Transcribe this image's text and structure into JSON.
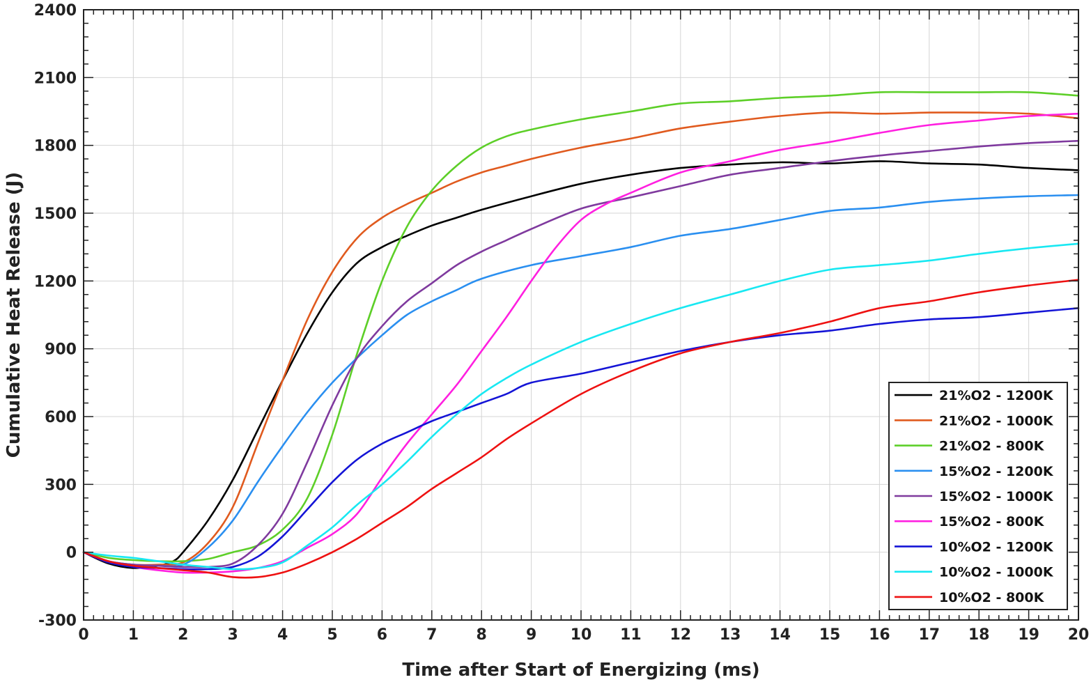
{
  "chart_data": {
    "type": "line",
    "title": "",
    "xlabel": "Time after Start of Energizing (ms)",
    "ylabel": "Cumulative Heat Release (J)",
    "xlim": [
      0,
      20
    ],
    "ylim": [
      -300,
      2400
    ],
    "xticks": [
      0,
      1,
      2,
      3,
      4,
      5,
      6,
      7,
      8,
      9,
      10,
      11,
      12,
      13,
      14,
      15,
      16,
      17,
      18,
      19,
      20
    ],
    "yticks": [
      -300,
      0,
      300,
      600,
      900,
      1200,
      1500,
      1800,
      2100,
      2400
    ],
    "grid": true,
    "legend_position": "bottom-right",
    "series": [
      {
        "name": "21%O2 - 1200K",
        "color": "#000000",
        "x": [
          0,
          0.5,
          1,
          1.5,
          1.8,
          2,
          2.5,
          3,
          3.5,
          4,
          4.5,
          5,
          5.5,
          6,
          6.5,
          7,
          7.5,
          8,
          9,
          10,
          11,
          12,
          13,
          14,
          15,
          16,
          17,
          18,
          19,
          20
        ],
        "y": [
          0,
          -50,
          -70,
          -60,
          -40,
          0,
          140,
          320,
          540,
          760,
          970,
          1150,
          1280,
          1350,
          1400,
          1445,
          1480,
          1515,
          1575,
          1630,
          1670,
          1700,
          1715,
          1725,
          1720,
          1730,
          1720,
          1715,
          1700,
          1690
        ]
      },
      {
        "name": "21%O2 - 1000K",
        "color": "#e05a1e",
        "x": [
          0,
          0.5,
          1,
          1.5,
          2,
          2.5,
          3,
          3.5,
          4,
          4.5,
          5,
          5.5,
          6,
          6.5,
          7,
          7.5,
          8,
          8.5,
          9,
          10,
          11,
          12,
          13,
          14,
          15,
          16,
          17,
          18,
          19,
          20
        ],
        "y": [
          0,
          -40,
          -55,
          -55,
          -45,
          40,
          200,
          480,
          760,
          1030,
          1240,
          1390,
          1480,
          1540,
          1590,
          1640,
          1680,
          1710,
          1740,
          1790,
          1830,
          1875,
          1905,
          1930,
          1945,
          1940,
          1945,
          1945,
          1940,
          1920
        ]
      },
      {
        "name": "21%O2 - 800K",
        "color": "#5dcf28",
        "x": [
          0,
          0.5,
          1,
          1.5,
          2,
          2.5,
          3,
          3.5,
          4,
          4.5,
          5,
          5.5,
          6,
          6.5,
          7,
          7.5,
          8,
          8.5,
          9,
          10,
          11,
          12,
          13,
          14,
          15,
          16,
          17,
          18,
          19,
          20
        ],
        "y": [
          0,
          -25,
          -35,
          -40,
          -40,
          -30,
          0,
          30,
          100,
          240,
          520,
          880,
          1200,
          1440,
          1600,
          1710,
          1790,
          1840,
          1870,
          1915,
          1950,
          1985,
          1995,
          2010,
          2020,
          2035,
          2035,
          2035,
          2035,
          2020
        ]
      },
      {
        "name": "15%O2 - 1200K",
        "color": "#2a8ff0",
        "x": [
          0,
          0.5,
          1,
          1.5,
          2,
          2.5,
          3,
          3.5,
          4,
          4.5,
          5,
          5.5,
          6,
          6.5,
          7,
          7.5,
          8,
          9,
          10,
          11,
          12,
          13,
          14,
          15,
          16,
          17,
          18,
          19,
          20
        ],
        "y": [
          0,
          -40,
          -55,
          -60,
          -55,
          20,
          140,
          310,
          470,
          620,
          750,
          860,
          960,
          1050,
          1110,
          1160,
          1210,
          1270,
          1310,
          1350,
          1400,
          1430,
          1470,
          1510,
          1525,
          1550,
          1565,
          1575,
          1580
        ]
      },
      {
        "name": "15%O2 - 1000K",
        "color": "#7f3a9e",
        "x": [
          0,
          0.5,
          1,
          1.5,
          2,
          2.5,
          3,
          3.5,
          4,
          4.5,
          5,
          5.5,
          6,
          6.5,
          7,
          7.5,
          8,
          8.5,
          9,
          10,
          11,
          12,
          13,
          14,
          15,
          16,
          17,
          18,
          19,
          20
        ],
        "y": [
          0,
          -40,
          -55,
          -60,
          -65,
          -65,
          -50,
          30,
          170,
          400,
          650,
          860,
          1000,
          1110,
          1190,
          1270,
          1330,
          1380,
          1430,
          1520,
          1570,
          1620,
          1670,
          1700,
          1730,
          1755,
          1775,
          1795,
          1810,
          1820
        ]
      },
      {
        "name": "15%O2 - 800K",
        "color": "#ff1fe0",
        "x": [
          0,
          0.5,
          1,
          1.5,
          2,
          2.5,
          3,
          3.5,
          4,
          4.5,
          5,
          5.5,
          6,
          6.5,
          7,
          7.5,
          8,
          8.5,
          9,
          9.5,
          10,
          10.5,
          11,
          12,
          13,
          14,
          15,
          16,
          17,
          18,
          19,
          20
        ],
        "y": [
          0,
          -45,
          -65,
          -80,
          -90,
          -90,
          -85,
          -70,
          -40,
          20,
          80,
          170,
          330,
          480,
          610,
          740,
          890,
          1040,
          1200,
          1350,
          1470,
          1540,
          1590,
          1680,
          1730,
          1780,
          1815,
          1855,
          1890,
          1910,
          1930,
          1940
        ]
      },
      {
        "name": "10%O2 - 1200K",
        "color": "#1414d6",
        "x": [
          0,
          0.5,
          1,
          1.5,
          2,
          2.5,
          3,
          3.5,
          4,
          4.5,
          5,
          5.5,
          6,
          6.5,
          7,
          7.5,
          8,
          8.5,
          9,
          10,
          11,
          12,
          13,
          14,
          15,
          16,
          17,
          18,
          19,
          20
        ],
        "y": [
          0,
          -45,
          -65,
          -70,
          -75,
          -75,
          -65,
          -20,
          70,
          190,
          310,
          410,
          480,
          530,
          580,
          620,
          660,
          700,
          750,
          790,
          840,
          890,
          930,
          960,
          980,
          1010,
          1030,
          1040,
          1060,
          1080
        ]
      },
      {
        "name": "10%O2 - 1000K",
        "color": "#18e8f2",
        "x": [
          0,
          0.5,
          1,
          1.5,
          2,
          2.5,
          3,
          3.5,
          4,
          4.5,
          5,
          5.5,
          6,
          6.5,
          7,
          7.5,
          8,
          8.5,
          9,
          10,
          11,
          12,
          13,
          14,
          15,
          16,
          17,
          18,
          19,
          20
        ],
        "y": [
          0,
          -15,
          -25,
          -40,
          -55,
          -65,
          -75,
          -70,
          -45,
          30,
          110,
          210,
          300,
          400,
          510,
          610,
          700,
          770,
          830,
          930,
          1010,
          1080,
          1140,
          1200,
          1250,
          1270,
          1290,
          1320,
          1345,
          1365
        ]
      },
      {
        "name": "10%O2 - 800K",
        "color": "#ee1111",
        "x": [
          0,
          0.5,
          1,
          1.5,
          2,
          2.5,
          3,
          3.5,
          4,
          4.5,
          5,
          5.5,
          6,
          6.5,
          7,
          7.5,
          8,
          8.5,
          9,
          10,
          11,
          12,
          13,
          14,
          15,
          16,
          17,
          18,
          19,
          20
        ],
        "y": [
          0,
          -40,
          -60,
          -70,
          -80,
          -90,
          -110,
          -110,
          -90,
          -50,
          0,
          60,
          130,
          200,
          280,
          350,
          420,
          500,
          570,
          700,
          800,
          880,
          930,
          970,
          1020,
          1080,
          1110,
          1150,
          1180,
          1205
        ]
      }
    ]
  }
}
